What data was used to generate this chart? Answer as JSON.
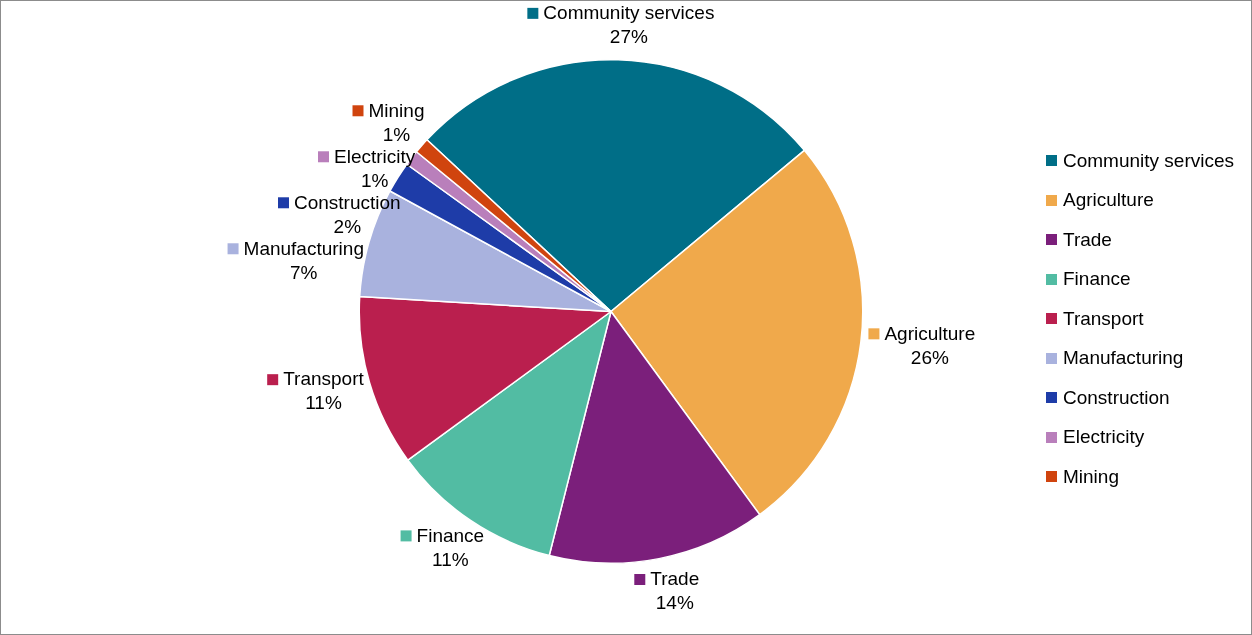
{
  "chart_data": {
    "type": "pie",
    "categories": [
      "Community services",
      "Agriculture",
      "Trade",
      "Finance",
      "Transport",
      "Manufacturing",
      "Construction",
      "Electricity",
      "Mining"
    ],
    "values": [
      27,
      26,
      14,
      11,
      11,
      7,
      2,
      1,
      1
    ],
    "value_labels": [
      "27%",
      "26%",
      "14%",
      "11%",
      "11%",
      "7%",
      "2%",
      "1%",
      "1%"
    ],
    "colors": [
      "#006e87",
      "#f0a94b",
      "#7b1f7b",
      "#52bca3",
      "#ba1f4e",
      "#a9b2de",
      "#1e3ca8",
      "#b97fbb",
      "#d0440e"
    ],
    "legend": "right"
  }
}
